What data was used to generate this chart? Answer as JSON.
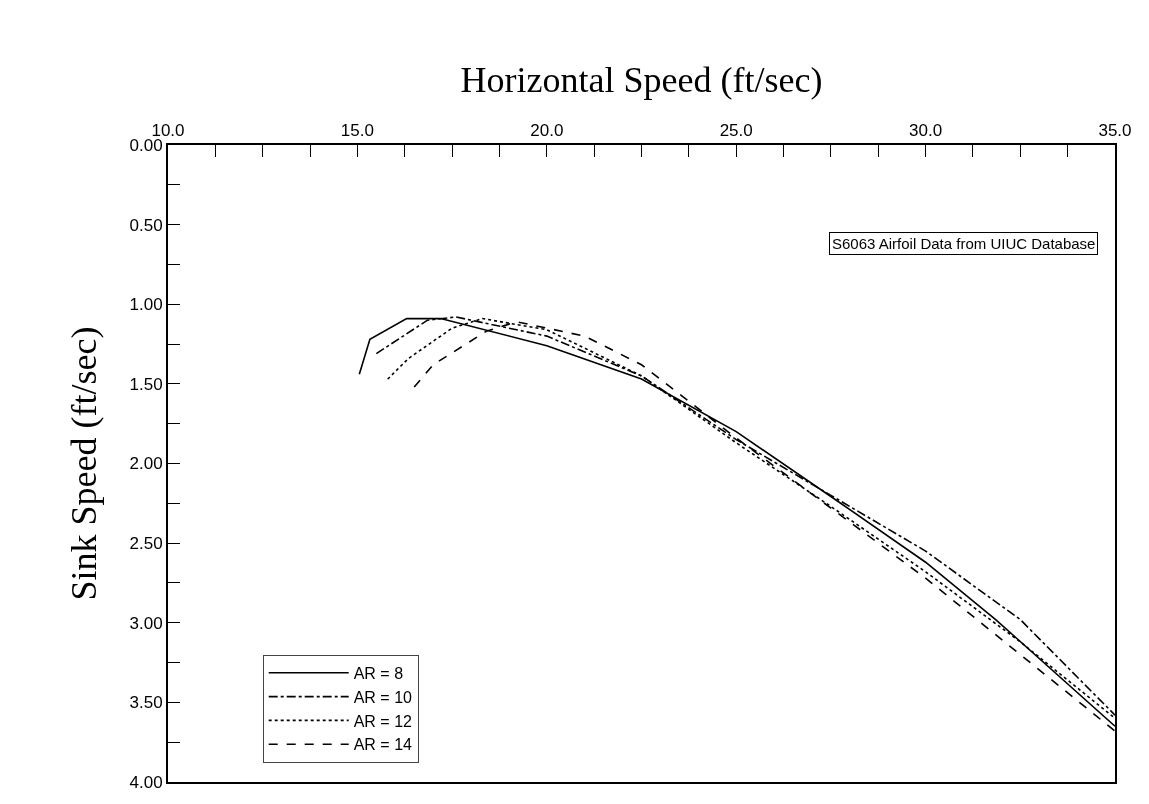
{
  "chart_data": {
    "type": "line",
    "xlabel": "Horizontal Speed (ft/sec)",
    "ylabel": "Sink Speed (ft/sec)",
    "annotations": [
      "S6063 Airfoil Data from UIUC Database"
    ],
    "xlim": [
      10,
      35
    ],
    "ylim": [
      4,
      0
    ],
    "xticks": [
      {
        "value": 10,
        "label": "10.0"
      },
      {
        "value": 11.25,
        "label": null
      },
      {
        "value": 12.5,
        "label": null
      },
      {
        "value": 13.75,
        "label": null
      },
      {
        "value": 15,
        "label": "15.0"
      },
      {
        "value": 16.25,
        "label": null
      },
      {
        "value": 17.5,
        "label": null
      },
      {
        "value": 18.75,
        "label": null
      },
      {
        "value": 20,
        "label": "20.0"
      },
      {
        "value": 21.25,
        "label": null
      },
      {
        "value": 22.5,
        "label": null
      },
      {
        "value": 23.75,
        "label": null
      },
      {
        "value": 25,
        "label": "25.0"
      },
      {
        "value": 26.25,
        "label": null
      },
      {
        "value": 27.5,
        "label": null
      },
      {
        "value": 28.75,
        "label": null
      },
      {
        "value": 30,
        "label": "30.0"
      },
      {
        "value": 31.25,
        "label": null
      },
      {
        "value": 32.5,
        "label": null
      },
      {
        "value": 33.75,
        "label": null
      },
      {
        "value": 35,
        "label": "35.0"
      }
    ],
    "yticks": [
      {
        "value": 0,
        "label": "0.00"
      },
      {
        "value": 0.25,
        "label": null
      },
      {
        "value": 0.5,
        "label": "0.50"
      },
      {
        "value": 0.75,
        "label": null
      },
      {
        "value": 1,
        "label": "1.00"
      },
      {
        "value": 1.25,
        "label": null
      },
      {
        "value": 1.5,
        "label": "1.50"
      },
      {
        "value": 1.75,
        "label": null
      },
      {
        "value": 2,
        "label": "2.00"
      },
      {
        "value": 2.25,
        "label": null
      },
      {
        "value": 2.5,
        "label": "2.50"
      },
      {
        "value": 2.75,
        "label": null
      },
      {
        "value": 3,
        "label": "3.00"
      },
      {
        "value": 3.25,
        "label": null
      },
      {
        "value": 3.5,
        "label": "3.50"
      },
      {
        "value": 3.75,
        "label": null
      },
      {
        "value": 4,
        "label": "4.00"
      }
    ],
    "grid": false,
    "legend": "bottom left",
    "marker": "none",
    "series": [
      {
        "name": "AR = 8",
        "color": "#000000",
        "line_style": "solid",
        "x": [
          15.05,
          15.33,
          16.3,
          17.2,
          20,
          22.5,
          25,
          27.7,
          30,
          31.85,
          35
        ],
        "values": [
          1.44,
          1.22,
          1.09,
          1.09,
          1.26,
          1.47,
          1.8,
          2.24,
          2.62,
          2.98,
          3.65
        ]
      },
      {
        "name": "AR = 10",
        "color": "#000000",
        "line_style": "dashdot",
        "x": [
          15.5,
          16.85,
          17.6,
          20,
          22.5,
          25,
          27.5,
          30,
          32.5,
          35
        ],
        "values": [
          1.31,
          1.1,
          1.08,
          1.2,
          1.45,
          1.85,
          2.2,
          2.55,
          2.98,
          3.58
        ]
      },
      {
        "name": "AR = 12",
        "color": "#000000",
        "line_style": "dotted",
        "x": [
          15.8,
          16.35,
          17.5,
          18.3,
          20,
          22.5,
          25,
          27.5,
          30,
          32.5,
          35
        ],
        "values": [
          1.47,
          1.34,
          1.15,
          1.09,
          1.16,
          1.45,
          1.87,
          2.27,
          2.68,
          3.12,
          3.6
        ]
      },
      {
        "name": "AR = 14",
        "color": "#000000",
        "line_style": "dashed",
        "x": [
          16.5,
          17,
          18.4,
          19.2,
          21,
          22.5,
          25,
          27.5,
          30,
          32.5,
          35
        ],
        "values": [
          1.52,
          1.38,
          1.17,
          1.11,
          1.2,
          1.38,
          1.84,
          2.28,
          2.72,
          3.2,
          3.68
        ]
      }
    ]
  }
}
